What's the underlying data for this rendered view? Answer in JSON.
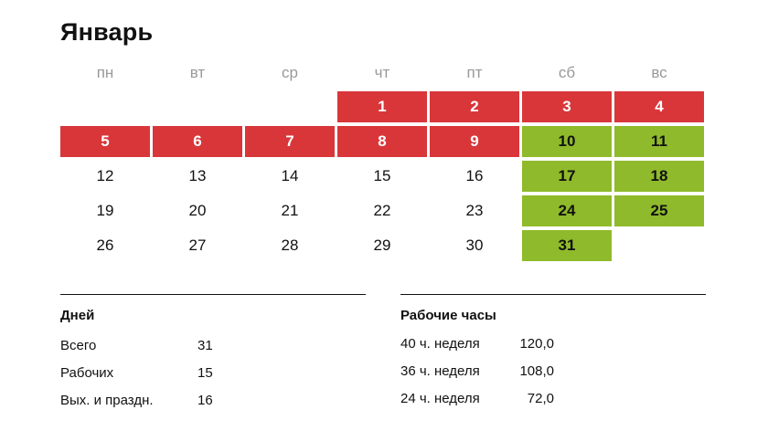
{
  "title": "Январь",
  "weekdays": [
    "пн",
    "вт",
    "ср",
    "чт",
    "пт",
    "сб",
    "вс"
  ],
  "calendar_rows": [
    [
      {
        "day": "",
        "kind": "empty"
      },
      {
        "day": "",
        "kind": "empty"
      },
      {
        "day": "",
        "kind": "empty"
      },
      {
        "day": "1",
        "kind": "holiday"
      },
      {
        "day": "2",
        "kind": "holiday"
      },
      {
        "day": "3",
        "kind": "holiday"
      },
      {
        "day": "4",
        "kind": "holiday"
      }
    ],
    [
      {
        "day": "5",
        "kind": "holiday"
      },
      {
        "day": "6",
        "kind": "holiday"
      },
      {
        "day": "7",
        "kind": "holiday"
      },
      {
        "day": "8",
        "kind": "holiday"
      },
      {
        "day": "9",
        "kind": "holiday"
      },
      {
        "day": "10",
        "kind": "weekend"
      },
      {
        "day": "11",
        "kind": "weekend"
      }
    ],
    [
      {
        "day": "12",
        "kind": "work"
      },
      {
        "day": "13",
        "kind": "work"
      },
      {
        "day": "14",
        "kind": "work"
      },
      {
        "day": "15",
        "kind": "work"
      },
      {
        "day": "16",
        "kind": "work"
      },
      {
        "day": "17",
        "kind": "weekend"
      },
      {
        "day": "18",
        "kind": "weekend"
      }
    ],
    [
      {
        "day": "19",
        "kind": "work"
      },
      {
        "day": "20",
        "kind": "work"
      },
      {
        "day": "21",
        "kind": "work"
      },
      {
        "day": "22",
        "kind": "work"
      },
      {
        "day": "23",
        "kind": "work"
      },
      {
        "day": "24",
        "kind": "weekend"
      },
      {
        "day": "25",
        "kind": "weekend"
      }
    ],
    [
      {
        "day": "26",
        "kind": "work"
      },
      {
        "day": "27",
        "kind": "work"
      },
      {
        "day": "28",
        "kind": "work"
      },
      {
        "day": "29",
        "kind": "work"
      },
      {
        "day": "30",
        "kind": "work"
      },
      {
        "day": "31",
        "kind": "weekend"
      },
      {
        "day": "",
        "kind": "empty"
      }
    ]
  ],
  "colors": {
    "holiday": "#d9363a",
    "weekend": "#8fba2b",
    "weekday_header": "#999999"
  },
  "days": {
    "heading": "Дней",
    "rows": [
      {
        "label": "Всего",
        "value": "31"
      },
      {
        "label": "Рабочих",
        "value": "15"
      },
      {
        "label": "Вых. и праздн.",
        "value": "16"
      }
    ]
  },
  "hours": {
    "heading": "Рабочие часы",
    "rows": [
      {
        "label": "40 ч. неделя",
        "value": "120,0"
      },
      {
        "label": "36 ч. неделя",
        "value": "108,0"
      },
      {
        "label": "24 ч. неделя",
        "value": "72,0"
      }
    ]
  }
}
